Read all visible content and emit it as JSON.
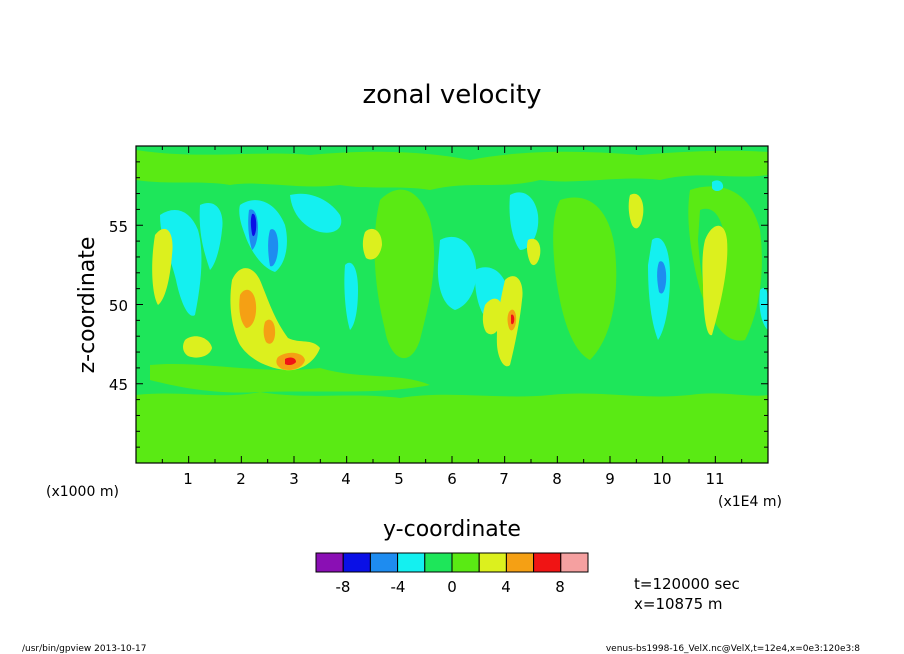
{
  "chart_data": {
    "type": "heatmap",
    "title": "zonal velocity",
    "xlabel": "y-coordinate",
    "ylabel": "z-coordinate",
    "x_scale_note": "(x1E4 m)",
    "y_scale_note": "(x1000 m)",
    "xlim": [
      0,
      12
    ],
    "ylim": [
      40,
      60
    ],
    "x_ticks": [
      "1",
      "2",
      "3",
      "4",
      "5",
      "6",
      "7",
      "8",
      "9",
      "10",
      "11"
    ],
    "y_ticks": [
      "45",
      "50",
      "55"
    ],
    "colorbar": {
      "levels": [
        -10,
        -8,
        -6,
        -4,
        -2,
        0,
        2,
        4,
        6,
        8,
        10
      ],
      "colors": [
        "#8a0fb4",
        "#0a10e6",
        "#1e8cf0",
        "#14f0f0",
        "#1ee65a",
        "#5aea14",
        "#dcf01e",
        "#f5a014",
        "#f01414",
        "#f5a0a0"
      ],
      "tick_labels": [
        "-8",
        "-4",
        "0",
        "4",
        "8"
      ]
    },
    "annotations": {
      "time": "t=120000 sec",
      "position": "x=10875 m"
    },
    "footer_left": "/usr/bin/gpview   2013-10-17",
    "footer_right": "venus-bs1998-16_VelX.nc@VelX,t=12e4,x=0e3:120e3:8",
    "features": [
      {
        "x": 1.0,
        "y": 47.8,
        "value": 3
      },
      {
        "x": 2.1,
        "y": 49.5,
        "value": 5
      },
      {
        "x": 2.9,
        "y": 46.6,
        "value": 6
      },
      {
        "x": 2.6,
        "y": 54.0,
        "value": -5
      },
      {
        "x": 7.0,
        "y": 50.0,
        "value": 3
      },
      {
        "x": 10.0,
        "y": 52.0,
        "value": -6
      },
      {
        "x": 11.0,
        "y": 51.5,
        "value": 3
      }
    ]
  }
}
